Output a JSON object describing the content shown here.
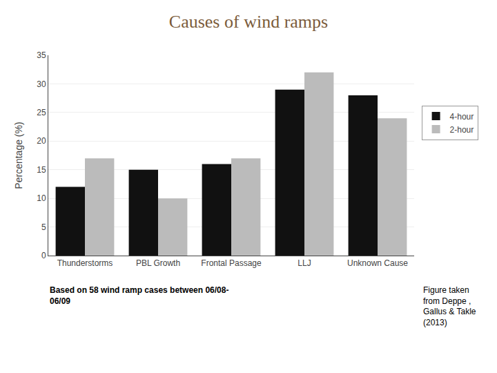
{
  "chart_data": {
    "type": "bar",
    "title": "Causes of wind ramps",
    "subtitle": "Based on 58 wind ramp cases between 06/08-\n06/09",
    "annotations": [
      "Figure taken\nfrom Deppe ,\nGallus & Takle\n(2013)"
    ],
    "ylabel": "Percentage (%)",
    "categories": [
      "Thunderstorms",
      "PBL Growth",
      "Frontal Passage",
      "LLJ",
      "Unknown Cause"
    ],
    "series": [
      {
        "name": "4-hour",
        "color": "#111111",
        "values": [
          12,
          15,
          16,
          29,
          28
        ]
      },
      {
        "name": "2-hour",
        "color": "#BBBBBB",
        "values": [
          17,
          10,
          17,
          32,
          24
        ]
      }
    ],
    "ylim": [
      0,
      35
    ],
    "yticks": [
      0,
      5,
      10,
      15,
      20,
      25,
      30,
      35
    ],
    "grid": true,
    "legend": "right"
  }
}
